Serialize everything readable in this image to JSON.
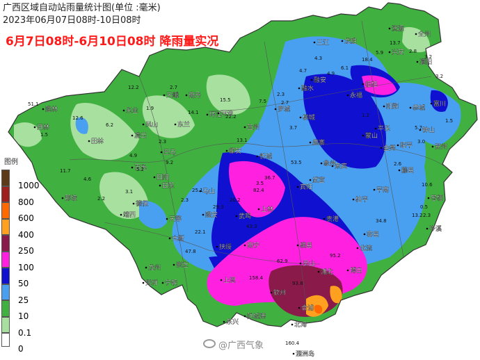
{
  "title": "广西区域自动站雨量统计图(单位 :毫米)",
  "subtitle": "2023年06月07日08时-10日08时",
  "headline": "6月7日08时-6月10日08时 降雨量实况",
  "legend": {
    "title": "图例",
    "levels": [
      {
        "label": "1000",
        "color": "#5c3a1a"
      },
      {
        "label": "800",
        "color": "#a0201e"
      },
      {
        "label": "600",
        "color": "#ff6a00"
      },
      {
        "label": "400",
        "color": "#ffa020"
      },
      {
        "label": "250",
        "color": "#8a1a4a"
      },
      {
        "label": "100",
        "color": "#ff20e0"
      },
      {
        "label": "50",
        "color": "#1010d0"
      },
      {
        "label": "25",
        "color": "#4aa0f0"
      },
      {
        "label": "10",
        "color": "#40b040"
      },
      {
        "label": "0.1",
        "color": "#a8e0a0"
      },
      {
        "label": "0",
        "color": "#ffffff"
      }
    ]
  },
  "cities": [
    "资源",
    "全州",
    "三江",
    "龙胜",
    "兴安",
    "灌阳",
    "融安",
    "临桂",
    "天峨",
    "南丹",
    "环江",
    "融水",
    "永福",
    "阳朔",
    "恭城",
    "罗城",
    "凌云",
    "乐业",
    "凤山",
    "东兰",
    "河池",
    "宜州",
    "柳城",
    "鹿寨",
    "平乐",
    "富川",
    "钟山",
    "贺州",
    "昭平",
    "蒙山",
    "金秀",
    "隆林",
    "西林",
    "田林",
    "巴马",
    "都安",
    "忻城",
    "象州",
    "武宣",
    "藤县",
    "苍梧",
    "百色",
    "田阳",
    "田东",
    "马山",
    "宾阳",
    "来宾",
    "平南",
    "桂平",
    "岑溪",
    "那坡",
    "德保",
    "靖西",
    "天等",
    "隆安",
    "武鸣",
    "上林",
    "贵港",
    "容县",
    "北流",
    "大新",
    "扶绥",
    "南宁",
    "横县",
    "灵山",
    "浦北",
    "博白",
    "龙州",
    "凭祥",
    "宁明",
    "崇左",
    "上思",
    "钦州",
    "合浦",
    "北海",
    "东兴",
    "防城港",
    "涠洲岛"
  ],
  "values": [
    "51.1",
    "12.6",
    "12.2",
    "2.7",
    "14.1",
    "15.5",
    "22.2",
    "7.5",
    "2.3",
    "4.7",
    "4.3",
    "4.9",
    "6.1",
    "18.4",
    "5.9",
    "13.7",
    "2.8",
    "3.2",
    "3.2",
    "1.5",
    "1.9",
    "2.3",
    "4.9",
    "4.6",
    "2.2",
    "3.1",
    "9.2",
    "2.3",
    "5.2",
    "6.2",
    "11.7",
    "1.5",
    "2.7",
    "3.5",
    "13.1",
    "3.7",
    "1.2",
    "5.7",
    "3.0",
    "2.6",
    "0.5",
    "2.3",
    "53.5",
    "25.1",
    "20.2",
    "29.3",
    "82.4",
    "34.8",
    "13.2",
    "10.6",
    "36.7",
    "43.3",
    "95.2",
    "22.1",
    "47.8",
    "62.9",
    "158.4",
    "160.4",
    "93.8"
  ],
  "watermark": "@广西气象"
}
